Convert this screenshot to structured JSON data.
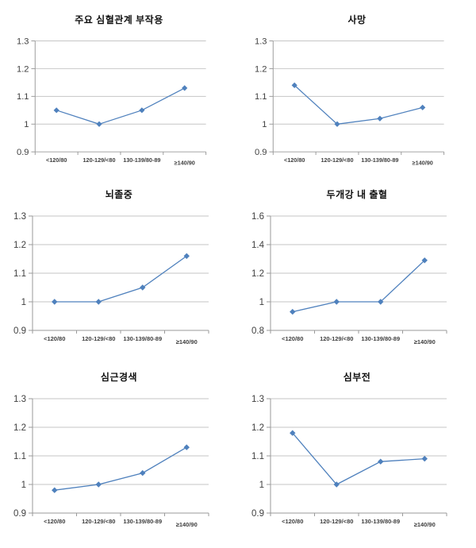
{
  "page": {
    "background": "#ffffff",
    "description_layout": "grid of six line charts, 2 columns x 3 rows, no legend, horizontal gridlines on"
  },
  "style": {
    "line_color": "#4f81bd",
    "marker_color": "#4f81bd",
    "grid_color": "#c6c6c6",
    "axis_color": "#9a9a9a",
    "tick_label_color": "#3f3f3f",
    "title_color": "#111111"
  },
  "chart_data": [
    {
      "type": "line",
      "title": "주요 심혈관계 부작용",
      "categories": [
        "<120/80",
        "120-129/<80",
        "130-139/80-89",
        "≥140/90"
      ],
      "values": [
        1.05,
        1.0,
        1.05,
        1.13
      ],
      "xlabel": "",
      "ylabel": "",
      "ylim": [
        0.9,
        1.3
      ],
      "yticks": [
        0.9,
        1,
        1.1,
        1.2,
        1.3
      ],
      "grid": "horizontal",
      "legend": "none"
    },
    {
      "type": "line",
      "title": "사망",
      "categories": [
        "<120/80",
        "120-129/<80",
        "130-139/80-89",
        "≥140/90"
      ],
      "values": [
        1.14,
        1.0,
        1.02,
        1.06
      ],
      "xlabel": "",
      "ylabel": "",
      "ylim": [
        0.9,
        1.3
      ],
      "yticks": [
        0.9,
        1,
        1.1,
        1.2,
        1.3
      ],
      "grid": "horizontal",
      "legend": "none"
    },
    {
      "type": "line",
      "title": "뇌졸중",
      "categories": [
        "<120/80",
        "120-129/<80",
        "130-139/80-89",
        "≥140/90"
      ],
      "values": [
        1.0,
        1.0,
        1.05,
        1.16
      ],
      "xlabel": "",
      "ylabel": "",
      "ylim": [
        0.9,
        1.3
      ],
      "yticks": [
        0.9,
        1,
        1.1,
        1.2,
        1.3
      ],
      "grid": "horizontal",
      "legend": "none"
    },
    {
      "type": "line",
      "title": "두개강 내 출혈",
      "categories": [
        "<120/80",
        "120-129/<80",
        "130-139/80-89",
        "≥140/90"
      ],
      "values": [
        0.93,
        1.0,
        1.0,
        1.29
      ],
      "xlabel": "",
      "ylabel": "",
      "ylim": [
        0.8,
        1.6
      ],
      "yticks": [
        0.8,
        1,
        1.2,
        1.4,
        1.6
      ],
      "grid": "horizontal",
      "legend": "none"
    },
    {
      "type": "line",
      "title": "심근경색",
      "categories": [
        "<120/80",
        "120-129/<80",
        "130-139/80-89",
        "≥140/90"
      ],
      "values": [
        0.98,
        1.0,
        1.04,
        1.13
      ],
      "xlabel": "",
      "ylabel": "",
      "ylim": [
        0.9,
        1.3
      ],
      "yticks": [
        0.9,
        1,
        1.1,
        1.2,
        1.3
      ],
      "grid": "horizontal",
      "legend": "none"
    },
    {
      "type": "line",
      "title": "심부전",
      "categories": [
        "<120/80",
        "120-129/<80",
        "130-139/80-89",
        "≥140/90"
      ],
      "values": [
        1.18,
        1.0,
        1.08,
        1.09
      ],
      "xlabel": "",
      "ylabel": "",
      "ylim": [
        0.9,
        1.3
      ],
      "yticks": [
        0.9,
        1,
        1.1,
        1.2,
        1.3
      ],
      "grid": "horizontal",
      "legend": "none"
    }
  ]
}
